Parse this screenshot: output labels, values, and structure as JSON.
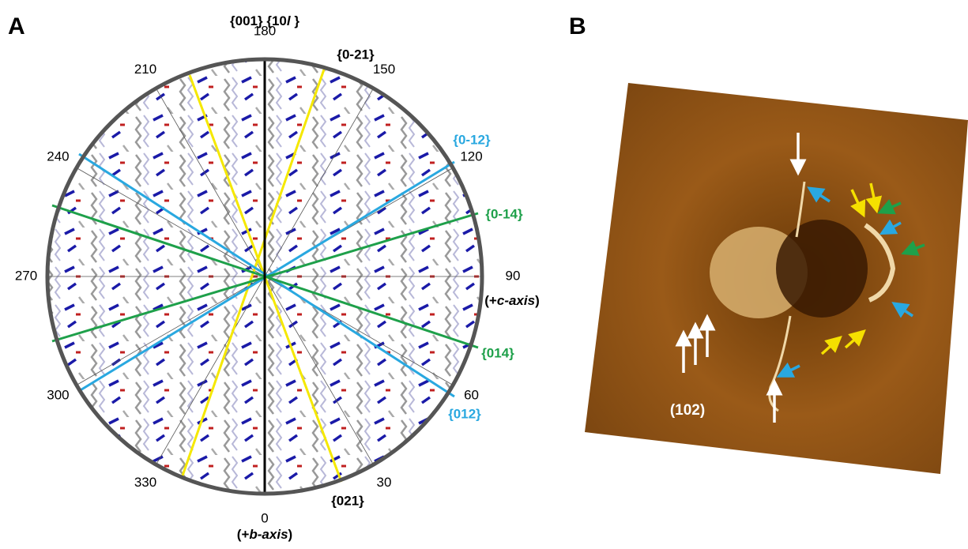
{
  "panel_a": {
    "label": "A",
    "zone_label_parts": [
      "{001} {10",
      "l",
      " }"
    ],
    "angle_labels": [
      0,
      30,
      60,
      90,
      120,
      150,
      180,
      210,
      240,
      270,
      300,
      330
    ],
    "c_axis_parts": [
      "(+",
      "c-axis",
      ")"
    ],
    "b_axis_parts": [
      "(+",
      "b-axis",
      ")"
    ],
    "families": [
      {
        "label": "{0-21}",
        "color": "#000000"
      },
      {
        "label": "{021}",
        "color": "#000000"
      },
      {
        "label": "{0-12}",
        "color": "#29a8e0"
      },
      {
        "label": "{012}",
        "color": "#29a8e0"
      },
      {
        "label": "{0-14}",
        "color": "#1ea04a"
      },
      {
        "label": "{014}",
        "color": "#1ea04a"
      }
    ]
  },
  "panel_b": {
    "label": "B",
    "plane_label": "(102)"
  }
}
